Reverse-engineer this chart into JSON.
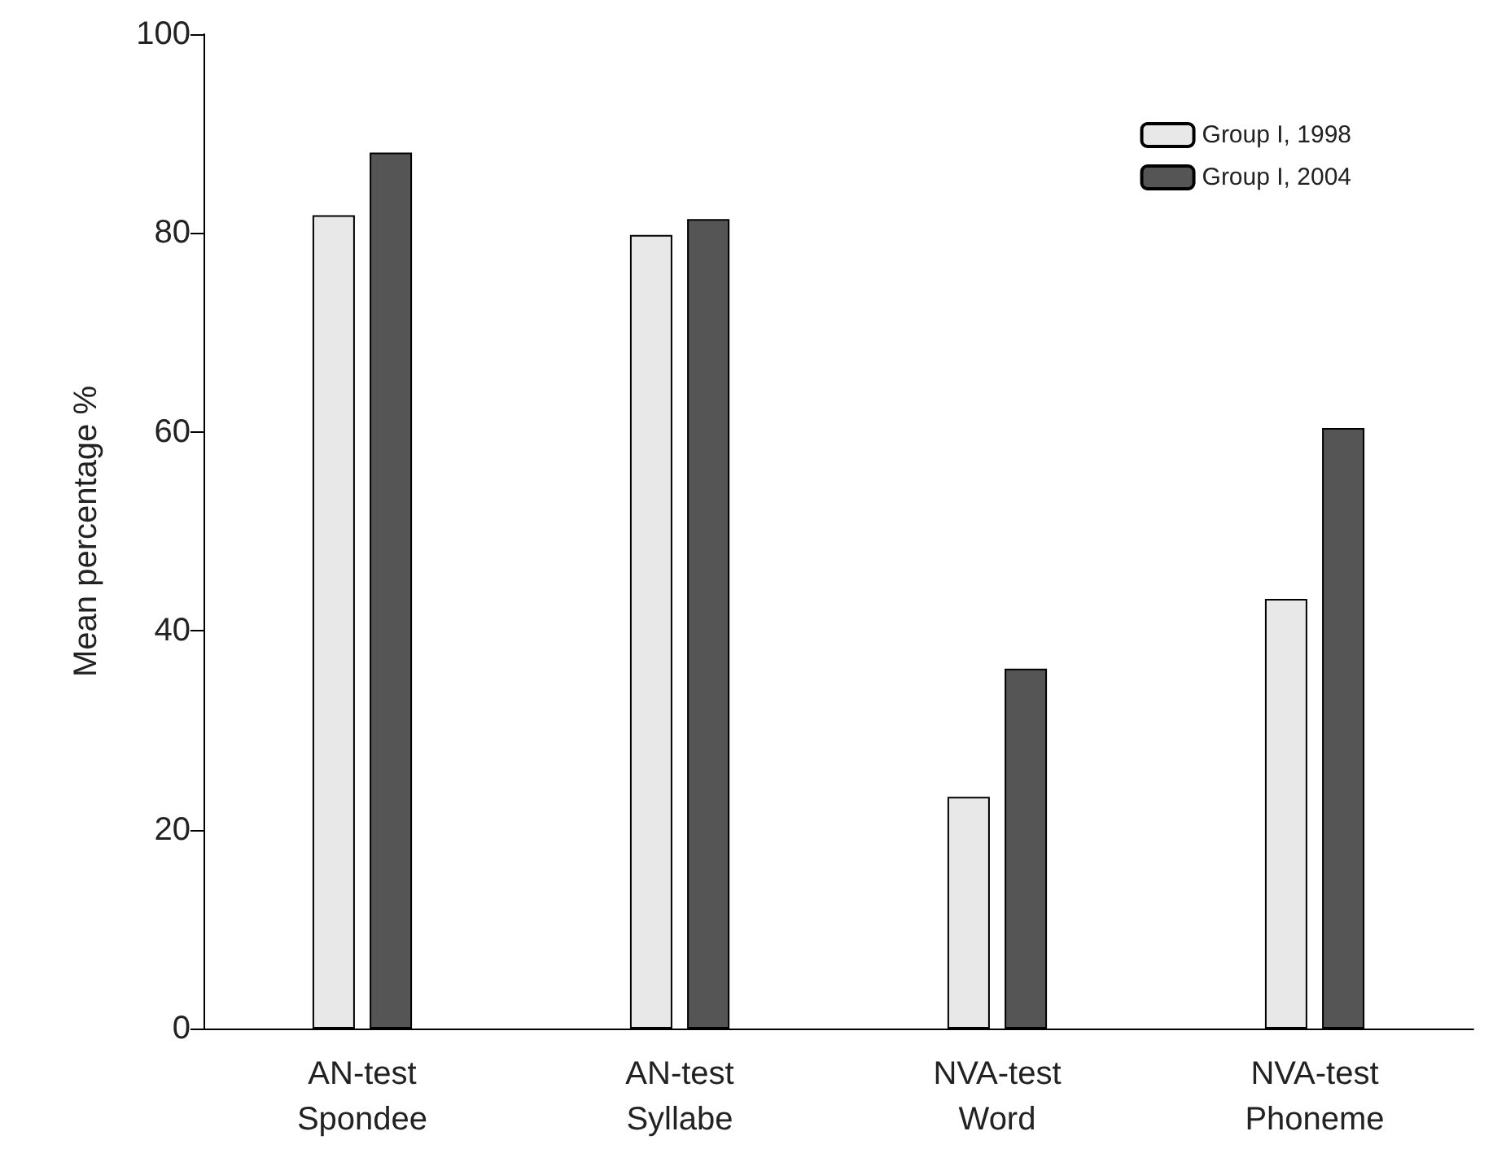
{
  "chart_data": {
    "type": "bar",
    "ylabel": "Mean percentage %",
    "categories": [
      "AN-test\nSpondee",
      "AN-test\nSyllabe",
      "NVA-test\nWord",
      "NVA-test\nPhoneme"
    ],
    "series": [
      {
        "name": "Group I, 1998",
        "color": "#e8e8e8",
        "values": [
          81.8,
          79.8,
          23.3,
          43.2
        ]
      },
      {
        "name": "Group I, 2004",
        "color": "#555555",
        "values": [
          88.1,
          81.4,
          36.2,
          60.4
        ]
      }
    ],
    "ylim": [
      0,
      100
    ],
    "yticks": [
      0,
      20,
      40,
      60,
      80,
      100
    ],
    "grid": false,
    "legend": "top right"
  }
}
